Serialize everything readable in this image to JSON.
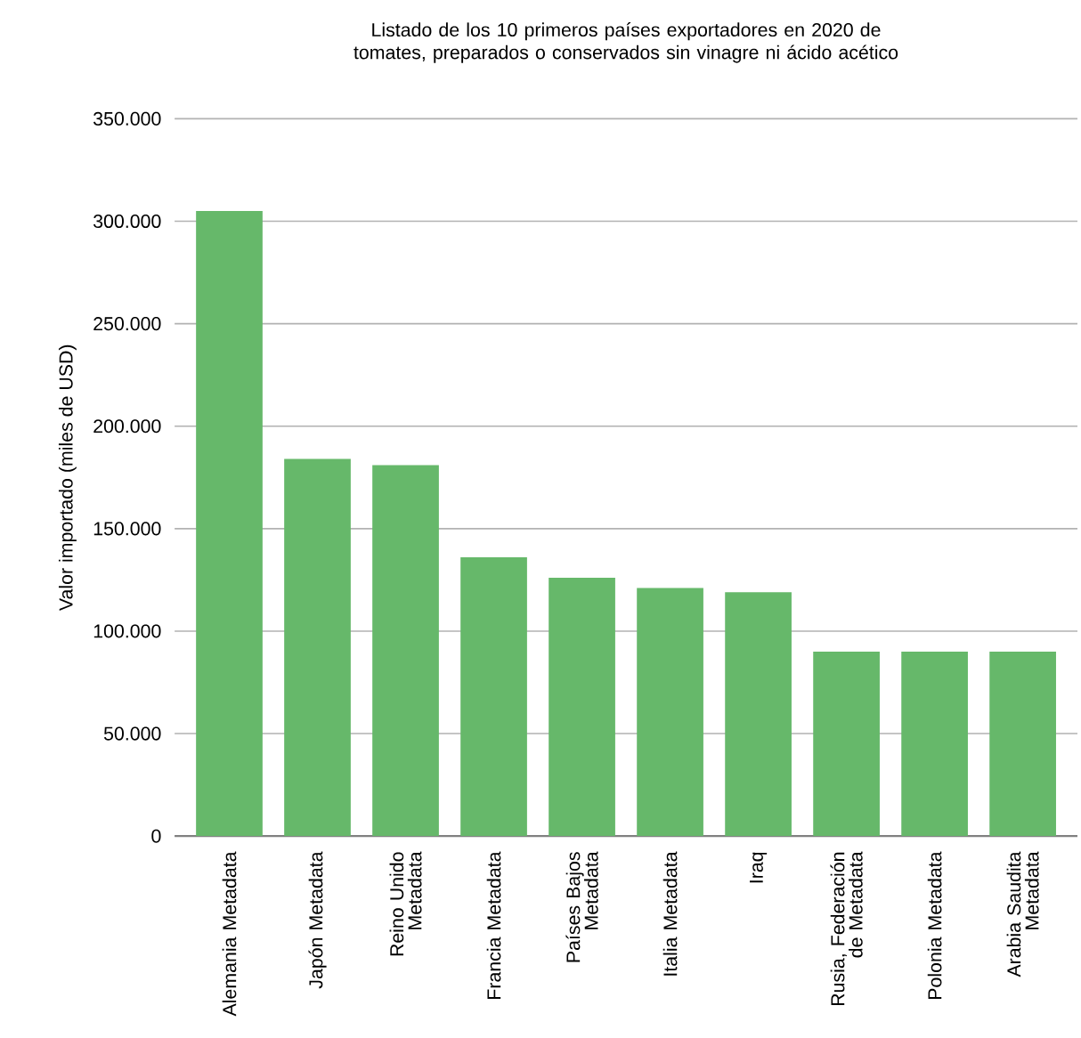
{
  "chart_data": {
    "type": "bar",
    "title": "Listado de los 10 primeros países exportadores en 2020 de tomates, preparados o conservados sin vinagre ni ácido acético",
    "ylabel": "Valor importado (miles de USD)",
    "categories": [
      "Alemania Metadata",
      "Japón Metadata",
      "Reino Unido Metadata",
      "Francia Metadata",
      "Países Bajos Metadata",
      "Italia Metadata",
      "Iraq",
      "Rusia, Federación de Metadata",
      "Polonia Metadata",
      "Arabia Saudita Metadata"
    ],
    "values": [
      305000,
      184000,
      181000,
      136000,
      126000,
      121000,
      119000,
      90000,
      90000,
      90000
    ],
    "color": "#66b86a",
    "ylim": [
      0,
      350000
    ],
    "yticks": [
      0,
      {
        "value": 50000,
        "label": "50.000"
      },
      {
        "value": 100000,
        "label": "100.000"
      },
      {
        "value": 150000,
        "label": "150.000"
      },
      {
        "value": 200000,
        "label": "200.000"
      },
      {
        "value": 250000,
        "label": "250.000"
      },
      {
        "value": 300000,
        "label": "300.000"
      },
      {
        "value": 350000,
        "label": "350.000"
      }
    ],
    "grid": "y"
  }
}
